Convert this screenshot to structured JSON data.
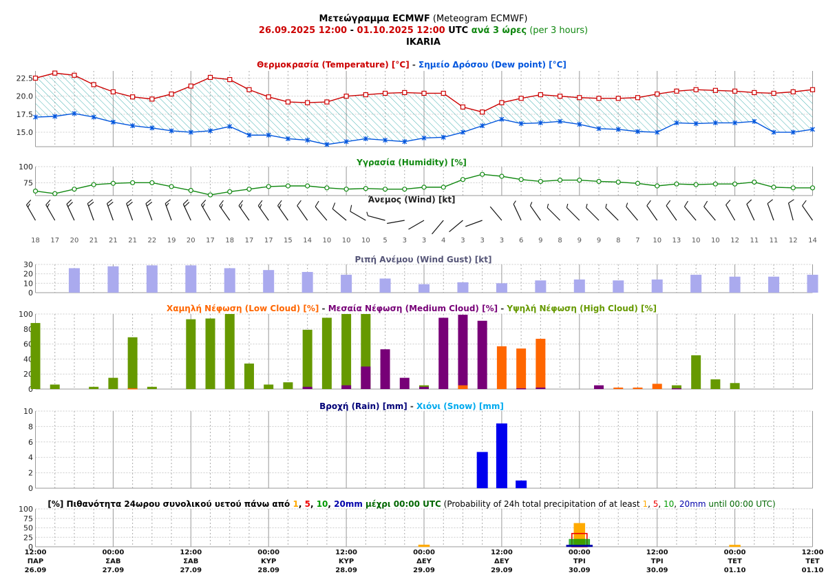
{
  "header": {
    "title_bold": "Μετεώγραμμα ECMWF",
    "title_rest": " (Meteogram ECMWF)",
    "period_start": "26.09.2025 12:00",
    "period_sep": " - ",
    "period_end": "01.10.2025 12:00",
    "period_utc": " UTC ",
    "period_step": "ανά 3 ώρες",
    "period_step_en": " (per 3 hours)",
    "location": "IKARIA"
  },
  "colors": {
    "temperature": "#cc0000",
    "dewpoint": "#0055dd",
    "hatch": "#33aaaa",
    "humidity": "#118811",
    "gust": "#aaaaee",
    "low_cloud": "#ff6600",
    "medium_cloud": "#770077",
    "high_cloud": "#669900",
    "rain": "#0000ee",
    "snow": "#00aaee",
    "prob1": "#ffaa00",
    "prob5": "#ee0000",
    "prob10": "#009900",
    "prob20": "#0000aa"
  },
  "chart_data": [
    {
      "type": "line",
      "title_parts": [
        "Θερμοκρασία (Temperature) [°C]",
        " - ",
        "Σημείο Δρόσου (Dew point) [°C]"
      ],
      "ylim": [
        13,
        23.5
      ],
      "yticks": [
        "15.0",
        "17.5",
        "20.0",
        "22.5"
      ],
      "series": [
        {
          "name": "Θερμοκρασία (Temperature) [°C]",
          "values": [
            22.5,
            23.2,
            22.9,
            21.6,
            20.6,
            19.9,
            19.6,
            20.3,
            21.4,
            22.6,
            22.3,
            20.9,
            19.9,
            19.2,
            19.1,
            19.2,
            20.0,
            20.2,
            20.4,
            20.5,
            20.4,
            20.4,
            18.5,
            17.8,
            19.1,
            19.7,
            20.2,
            20.0,
            19.8,
            19.7,
            19.7,
            19.8,
            20.3,
            20.7,
            20.9,
            20.8,
            20.7,
            20.5,
            20.4,
            20.6,
            20.9
          ]
        },
        {
          "name": "Σημείο Δρόσου (Dew point) [°C]",
          "values": [
            17.1,
            17.2,
            17.6,
            17.1,
            16.4,
            15.9,
            15.6,
            15.2,
            15.0,
            15.2,
            15.8,
            14.6,
            14.6,
            14.1,
            13.9,
            13.3,
            13.7,
            14.1,
            13.9,
            13.7,
            14.2,
            14.3,
            15.0,
            15.9,
            16.8,
            16.2,
            16.3,
            16.5,
            16.1,
            15.5,
            15.4,
            15.1,
            15.0,
            16.3,
            16.2,
            16.3,
            16.3,
            16.5,
            15.0,
            15.0,
            15.4
          ]
        }
      ]
    },
    {
      "type": "line",
      "title": "Υγρασία (Humidity) [%]",
      "ylim": [
        55,
        100
      ],
      "yticks": [
        "75",
        "100"
      ],
      "series": [
        {
          "name": "Υγρασία (Humidity) [%]",
          "values": [
            62,
            58,
            65,
            72,
            74,
            75,
            75,
            69,
            63,
            56,
            61,
            65,
            69,
            70,
            70,
            67,
            65,
            66,
            65,
            65,
            68,
            68,
            80,
            88,
            85,
            80,
            77,
            79,
            79,
            77,
            76,
            74,
            70,
            73,
            72,
            73,
            73,
            76,
            68,
            67,
            67
          ]
        }
      ]
    },
    {
      "type": "table",
      "title": "Άνεμος (Wind) [kt]",
      "speeds": [
        18,
        17,
        20,
        21,
        21,
        21,
        22,
        19,
        20,
        17,
        18,
        17,
        17,
        15,
        14,
        10,
        10,
        10,
        5,
        3,
        3,
        4,
        3,
        3,
        3,
        6,
        9,
        8,
        9,
        9,
        8,
        7,
        10,
        13,
        10,
        10,
        12,
        11,
        11,
        12,
        14
      ],
      "directions": [
        330,
        330,
        335,
        340,
        340,
        340,
        340,
        340,
        335,
        330,
        325,
        325,
        325,
        325,
        325,
        320,
        310,
        300,
        285,
        260,
        240,
        220,
        230,
        250,
        320,
        335,
        325,
        315,
        315,
        315,
        315,
        320,
        325,
        325,
        320,
        320,
        330,
        335,
        340,
        345,
        325
      ]
    },
    {
      "type": "bar",
      "title": "Ριπή Ανέμου (Wind Gust) [kt]",
      "ylim": [
        0,
        30
      ],
      "yticks": [
        "0",
        "10",
        "20",
        "30"
      ],
      "series": [
        {
          "name": "Ριπή Ανέμου (Wind Gust) [kt]",
          "values": [
            26,
            28,
            29,
            29,
            26,
            24,
            22,
            19,
            15,
            9,
            11,
            10,
            13,
            14,
            13,
            14,
            19,
            17,
            17,
            19
          ]
        }
      ]
    },
    {
      "type": "bar",
      "title_parts": [
        "Χαμηλή Νέφωση (Low Cloud) [%]",
        " - ",
        "Μεσαία Νέφωση (Medium Cloud) [%]",
        " - ",
        "Υψηλή Νέφωση (High Cloud) [%]"
      ],
      "ylim": [
        0,
        100
      ],
      "yticks": [
        "0",
        "20",
        "40",
        "60",
        "80",
        "100"
      ],
      "series": [
        {
          "name": "Χαμηλή Νέφωση (Low Cloud) [%]",
          "values": [
            0,
            0,
            0,
            0,
            0,
            1,
            0,
            0,
            0,
            0,
            0,
            0,
            0,
            0,
            0,
            0,
            0,
            0,
            0,
            0,
            0,
            0,
            5,
            0,
            57,
            54,
            67,
            0,
            0,
            0,
            2,
            2,
            7,
            0,
            0,
            0,
            0,
            0,
            0,
            0,
            0
          ]
        },
        {
          "name": "Μεσαία Νέφωση (Medium Cloud) [%]",
          "values": [
            0,
            0,
            0,
            0,
            0,
            0,
            0,
            0,
            0,
            0,
            0,
            0,
            0,
            0,
            3,
            0,
            5,
            30,
            53,
            15,
            3,
            95,
            99,
            91,
            0,
            1,
            2,
            0,
            0,
            5,
            0,
            0,
            0,
            1,
            0,
            0,
            0,
            0,
            0,
            0,
            0
          ]
        },
        {
          "name": "Υψηλή Νέφωση (High Cloud) [%]",
          "values": [
            88,
            6,
            0,
            3,
            15,
            69,
            3,
            0,
            93,
            94,
            100,
            34,
            6,
            9,
            79,
            95,
            100,
            100,
            0,
            0,
            5,
            0,
            0,
            0,
            0,
            0,
            0,
            0,
            0,
            0,
            0,
            0,
            0,
            5,
            45,
            13,
            8,
            0,
            0,
            0,
            0
          ]
        }
      ]
    },
    {
      "type": "bar",
      "title_parts": [
        "Βροχή (Rain) [mm]",
        " - ",
        "Χιόνι (Snow) [mm]"
      ],
      "ylim": [
        0,
        10
      ],
      "yticks": [
        "0",
        "2",
        "4",
        "6",
        "8",
        "10"
      ],
      "series": [
        {
          "name": "Βροχή (Rain) [mm]",
          "values": [
            0,
            0,
            0,
            0,
            0,
            0,
            0,
            0,
            0,
            0,
            0,
            0,
            0,
            0,
            0,
            0,
            0,
            0,
            0,
            0,
            0,
            0,
            0,
            4.7,
            8.4,
            1.0,
            0,
            0,
            0,
            0,
            0,
            0,
            0,
            0,
            0,
            0,
            0,
            0,
            0,
            0,
            0
          ]
        },
        {
          "name": "Χιόνι (Snow) [mm]",
          "values": [
            0,
            0,
            0,
            0,
            0,
            0,
            0,
            0,
            0,
            0,
            0,
            0,
            0,
            0,
            0,
            0,
            0,
            0,
            0,
            0,
            0,
            0,
            0,
            0,
            0,
            0,
            0,
            0,
            0,
            0,
            0,
            0,
            0,
            0,
            0,
            0,
            0,
            0,
            0,
            0,
            0
          ]
        }
      ]
    },
    {
      "type": "bar",
      "title_parts": [
        "[%] Πιθανότητα 24ωρου συνολικού υετού πάνω από ",
        "1",
        ", ",
        "5",
        ", ",
        "10",
        ", ",
        "20mm",
        " μέχρι 00:00 UTC",
        " (Probability of 24h total precipitation of at least ",
        "1",
        ", ",
        "5",
        ", ",
        "10",
        ", ",
        "20mm",
        " until 00:00 UTC)"
      ],
      "ylim": [
        0,
        100
      ],
      "yticks": [
        "0",
        "25",
        "50",
        "75",
        "100"
      ],
      "categories": [
        "27.09 00:00",
        "28.09 00:00",
        "29.09 00:00",
        "30.09 00:00",
        "01.10 00:00"
      ],
      "series": [
        {
          "name": "1",
          "values": [
            0,
            0,
            5,
            62,
            2
          ]
        },
        {
          "name": "5",
          "values": [
            0,
            0,
            0,
            35,
            0
          ]
        },
        {
          "name": "10",
          "values": [
            0,
            0,
            0,
            20,
            0
          ]
        },
        {
          "name": "20mm",
          "values": [
            0,
            0,
            0,
            3,
            0
          ]
        }
      ]
    }
  ],
  "x_axis": {
    "labels": [
      {
        "time": "12:00",
        "day": "ΠΑΡ",
        "date": "26.09"
      },
      {
        "time": "00:00",
        "day": "ΣΑΒ",
        "date": "27.09"
      },
      {
        "time": "12:00",
        "day": "ΣΑΒ",
        "date": "27.09"
      },
      {
        "time": "00:00",
        "day": "ΚΥΡ",
        "date": "28.09"
      },
      {
        "time": "12:00",
        "day": "ΚΥΡ",
        "date": "28.09"
      },
      {
        "time": "00:00",
        "day": "ΔΕΥ",
        "date": "29.09"
      },
      {
        "time": "12:00",
        "day": "ΔΕΥ",
        "date": "29.09"
      },
      {
        "time": "00:00",
        "day": "ΤΡΙ",
        "date": "30.09"
      },
      {
        "time": "12:00",
        "day": "ΤΡΙ",
        "date": "30.09"
      },
      {
        "time": "00:00",
        "day": "ΤΕΤ",
        "date": "01.10"
      },
      {
        "time": "12:00",
        "day": "ΤΕΤ",
        "date": "01.10"
      }
    ]
  }
}
